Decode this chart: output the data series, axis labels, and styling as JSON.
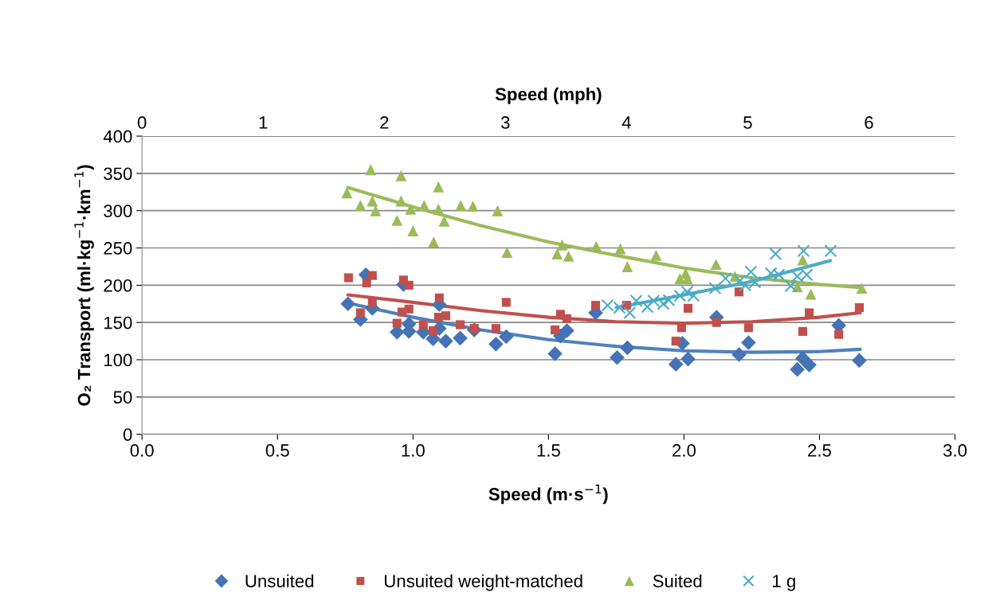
{
  "chart_data": {
    "type": "scatter",
    "xlabel": "Speed (m·s$^{−1}$)",
    "ylabel": "O₂ Transport (ml·kg$^{−1}$·km$^{−1}$)",
    "x2label": "Speed (mph)",
    "xlim": [
      0,
      3
    ],
    "xticks": [
      {
        "value": 0,
        "label": "0.0"
      },
      {
        "value": 0.5,
        "label": "0.5"
      },
      {
        "value": 1,
        "label": "1.0"
      },
      {
        "value": 1.5,
        "label": "1.5"
      },
      {
        "value": 2,
        "label": "2.0"
      },
      {
        "value": 2.5,
        "label": "2.5"
      },
      {
        "value": 3,
        "label": "3.0"
      }
    ],
    "x2lim": [
      0,
      6.711
    ],
    "x2ticks": [
      0,
      1,
      2,
      3,
      4,
      5,
      6
    ],
    "ylim": [
      0,
      400
    ],
    "yticks": [
      0,
      50,
      100,
      150,
      200,
      250,
      300,
      350,
      400
    ],
    "grid": "y",
    "legend": "bottom",
    "series": [
      {
        "name": "Unsuited",
        "color": "#4573b5",
        "marker": "diamond",
        "x": [
          0.76,
          0.806,
          0.826,
          0.85,
          0.941,
          0.965,
          0.985,
          0.985,
          1.038,
          1.074,
          1.097,
          1.097,
          1.121,
          1.174,
          1.226,
          1.306,
          1.344,
          1.524,
          1.544,
          1.568,
          1.674,
          1.753,
          1.791,
          1.97,
          1.994,
          2.015,
          2.12,
          2.203,
          2.238,
          2.418,
          2.438,
          2.462,
          2.571,
          2.647
        ],
        "values": [
          175,
          154,
          214,
          169,
          137,
          201,
          138,
          148,
          137,
          128,
          174,
          142,
          125,
          129,
          140,
          121,
          131,
          108,
          132,
          139,
          163,
          103,
          116,
          94,
          122,
          101,
          157,
          107,
          123,
          87,
          102,
          93,
          146,
          99
        ]
      },
      {
        "name": "Unsuited weight-matched",
        "color": "#c0504d",
        "marker": "square",
        "x": [
          0.762,
          0.806,
          0.829,
          0.85,
          0.85,
          0.941,
          0.959,
          0.965,
          0.985,
          0.985,
          1.038,
          1.074,
          1.094,
          1.097,
          1.121,
          1.174,
          1.226,
          1.306,
          1.344,
          1.524,
          1.544,
          1.568,
          1.674,
          1.788,
          1.97,
          1.991,
          2.015,
          2.12,
          2.203,
          2.238,
          2.438,
          2.462,
          2.571,
          2.647
        ],
        "values": [
          210,
          163,
          203,
          213,
          177,
          149,
          164,
          207,
          200,
          168,
          147,
          139,
          157,
          183,
          159,
          147,
          142,
          142,
          177,
          140,
          161,
          155,
          173,
          173,
          125,
          143,
          169,
          150,
          191,
          143,
          138,
          163,
          134,
          170
        ]
      },
      {
        "name": "Suited",
        "color": "#9bbb59",
        "marker": "triangle",
        "x": [
          0.756,
          0.806,
          0.844,
          0.85,
          0.862,
          0.941,
          0.956,
          0.956,
          0.991,
          1.0,
          1.041,
          1.076,
          1.094,
          1.094,
          1.115,
          1.176,
          1.221,
          1.312,
          1.347,
          1.532,
          1.55,
          1.574,
          1.676,
          1.765,
          1.791,
          1.897,
          1.985,
          2.006,
          2.012,
          2.118,
          2.188,
          2.418,
          2.438,
          2.468,
          2.656
        ],
        "values": [
          324,
          307,
          355,
          313,
          300,
          287,
          347,
          313,
          302,
          273,
          307,
          258,
          332,
          302,
          286,
          307,
          306,
          300,
          244,
          242,
          254,
          239,
          252,
          249,
          225,
          240,
          209,
          216,
          209,
          228,
          212,
          198,
          234,
          188,
          196
        ]
      },
      {
        "name": "1 g",
        "color": "#4bacc6",
        "marker": "cross",
        "x": [
          1.718,
          1.762,
          1.8,
          1.824,
          1.865,
          1.888,
          1.924,
          1.944,
          1.985,
          2.012,
          2.035,
          2.115,
          2.153,
          2.206,
          2.226,
          2.247,
          2.262,
          2.321,
          2.338,
          2.35,
          2.394,
          2.418,
          2.441,
          2.453,
          2.541
        ],
        "values": [
          173,
          170,
          163,
          179,
          171,
          179,
          175,
          180,
          186,
          191,
          186,
          196,
          209,
          206,
          200,
          218,
          204,
          216,
          242,
          214,
          199,
          212,
          246,
          214,
          246
        ]
      },
      {
        "type": "line",
        "color": "#4f81bd",
        "x": [
          0.76,
          1.0,
          1.25,
          1.5,
          1.75,
          2.0,
          2.25,
          2.5,
          2.65
        ],
        "values": [
          176,
          157,
          140,
          127,
          118,
          112,
          110,
          111,
          114
        ]
      },
      {
        "type": "line",
        "color": "#c0504d",
        "x": [
          0.76,
          1.0,
          1.25,
          1.5,
          1.75,
          2.0,
          2.25,
          2.5,
          2.65
        ],
        "values": [
          187,
          177,
          166,
          157,
          151,
          149,
          151,
          157,
          163
        ]
      },
      {
        "type": "line",
        "color": "#9bbb59",
        "x": [
          0.76,
          1.0,
          1.25,
          1.5,
          1.75,
          2.0,
          2.25,
          2.5,
          2.65
        ],
        "values": [
          331,
          305,
          280,
          258,
          240,
          223,
          210,
          201,
          197
        ]
      },
      {
        "type": "line",
        "color": "#4bacc6",
        "x": [
          1.75,
          2.0,
          2.25,
          2.54
        ],
        "values": [
          170,
          187,
          205,
          233
        ]
      }
    ]
  }
}
